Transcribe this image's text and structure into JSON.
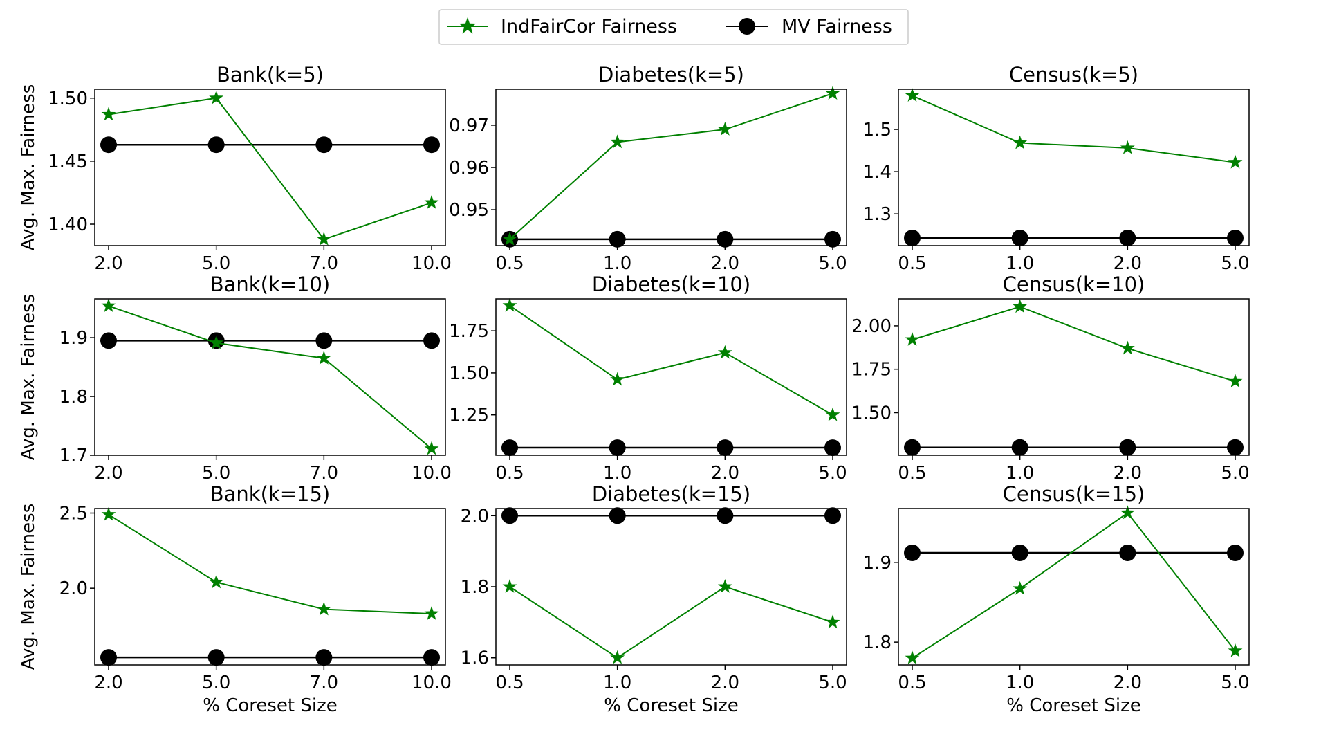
{
  "legend": {
    "location": "top-center",
    "entries": [
      {
        "label": "IndFairCor Fairness",
        "color": "#008000",
        "marker": "star"
      },
      {
        "label": "MV Fairness",
        "color": "#000000",
        "marker": "circle"
      }
    ]
  },
  "colors": {
    "indfaircor": "#008000",
    "mv": "#000000"
  },
  "chart_data": [
    {
      "type": "line",
      "title": "Bank(k=5)",
      "xlabel": "",
      "ylabel": "Avg. Max. Fairness",
      "categories": [
        "2.0",
        "5.0",
        "7.0",
        "10.0"
      ],
      "yticks": [
        "1.40",
        "1.45",
        "1.50"
      ],
      "ylim": [
        1.383,
        1.507
      ],
      "series": [
        {
          "name": "IndFairCor Fairness",
          "values": [
            1.487,
            1.5,
            1.388,
            1.417
          ]
        },
        {
          "name": "MV Fairness",
          "values": [
            1.463,
            1.463,
            1.463,
            1.463
          ]
        }
      ]
    },
    {
      "type": "line",
      "title": "Diabetes(k=5)",
      "xlabel": "",
      "ylabel": "",
      "categories": [
        "0.5",
        "1.0",
        "2.0",
        "5.0"
      ],
      "yticks": [
        "0.95",
        "0.96",
        "0.97"
      ],
      "ylim": [
        0.9415,
        0.9785
      ],
      "series": [
        {
          "name": "IndFairCor Fairness",
          "values": [
            0.943,
            0.966,
            0.969,
            0.9775
          ]
        },
        {
          "name": "MV Fairness",
          "values": [
            0.943,
            0.943,
            0.943,
            0.943
          ]
        }
      ]
    },
    {
      "type": "line",
      "title": "Census(k=5)",
      "xlabel": "",
      "ylabel": "",
      "categories": [
        "0.5",
        "1.0",
        "2.0",
        "5.0"
      ],
      "yticks": [
        "1.3",
        "1.4",
        "1.5"
      ],
      "ylim": [
        1.225,
        1.595
      ],
      "series": [
        {
          "name": "IndFairCor Fairness",
          "values": [
            1.58,
            1.468,
            1.456,
            1.422
          ]
        },
        {
          "name": "MV Fairness",
          "values": [
            1.243,
            1.243,
            1.243,
            1.243
          ]
        }
      ]
    },
    {
      "type": "line",
      "title": "Bank(k=10)",
      "xlabel": "",
      "ylabel": "Avg. Max. Fairness",
      "categories": [
        "2.0",
        "5.0",
        "7.0",
        "10.0"
      ],
      "yticks": [
        "1.7",
        "1.8",
        "1.9"
      ],
      "ylim": [
        1.7,
        1.966
      ],
      "series": [
        {
          "name": "IndFairCor Fairness",
          "values": [
            1.954,
            1.891,
            1.865,
            1.711
          ]
        },
        {
          "name": "MV Fairness",
          "values": [
            1.895,
            1.895,
            1.895,
            1.895
          ]
        }
      ]
    },
    {
      "type": "line",
      "title": "Diabetes(k=10)",
      "xlabel": "",
      "ylabel": "",
      "categories": [
        "0.5",
        "1.0",
        "2.0",
        "5.0"
      ],
      "yticks": [
        "1.25",
        "1.50",
        "1.75"
      ],
      "ylim": [
        1.01,
        1.94
      ],
      "series": [
        {
          "name": "IndFairCor Fairness",
          "values": [
            1.9,
            1.46,
            1.62,
            1.25
          ]
        },
        {
          "name": "MV Fairness",
          "values": [
            1.055,
            1.055,
            1.055,
            1.055
          ]
        }
      ]
    },
    {
      "type": "line",
      "title": "Census(k=10)",
      "xlabel": "",
      "ylabel": "",
      "categories": [
        "0.5",
        "1.0",
        "2.0",
        "5.0"
      ],
      "yticks": [
        "1.50",
        "1.75",
        "2.00"
      ],
      "ylim": [
        1.255,
        2.155
      ],
      "series": [
        {
          "name": "IndFairCor Fairness",
          "values": [
            1.92,
            2.11,
            1.87,
            1.68
          ]
        },
        {
          "name": "MV Fairness",
          "values": [
            1.3,
            1.3,
            1.3,
            1.3
          ]
        }
      ]
    },
    {
      "type": "line",
      "title": "Bank(k=15)",
      "xlabel": "% Coreset Size",
      "ylabel": "Avg. Max. Fairness",
      "categories": [
        "2.0",
        "5.0",
        "7.0",
        "10.0"
      ],
      "yticks": [
        "2.0",
        "2.5"
      ],
      "ylim": [
        1.49,
        2.53
      ],
      "series": [
        {
          "name": "IndFairCor Fairness",
          "values": [
            2.49,
            2.04,
            1.86,
            1.83
          ]
        },
        {
          "name": "MV Fairness",
          "values": [
            1.54,
            1.54,
            1.54,
            1.54
          ]
        }
      ]
    },
    {
      "type": "line",
      "title": "Diabetes(k=15)",
      "xlabel": "% Coreset Size",
      "ylabel": "",
      "categories": [
        "0.5",
        "1.0",
        "2.0",
        "5.0"
      ],
      "yticks": [
        "1.6",
        "1.8",
        "2.0"
      ],
      "ylim": [
        1.58,
        2.02
      ],
      "series": [
        {
          "name": "IndFairCor Fairness",
          "values": [
            1.8,
            1.6,
            1.8,
            1.7
          ]
        },
        {
          "name": "MV Fairness",
          "values": [
            2.0,
            2.0,
            2.0,
            2.0
          ]
        }
      ]
    },
    {
      "type": "line",
      "title": "Census(k=15)",
      "xlabel": "% Coreset Size",
      "ylabel": "",
      "categories": [
        "0.5",
        "1.0",
        "2.0",
        "5.0"
      ],
      "yticks": [
        "1.8",
        "1.9"
      ],
      "ylim": [
        1.7715,
        1.9675
      ],
      "series": [
        {
          "name": "IndFairCor Fairness",
          "values": [
            1.78,
            1.867,
            1.962,
            1.789
          ]
        },
        {
          "name": "MV Fairness",
          "values": [
            1.912,
            1.912,
            1.912,
            1.912
          ]
        }
      ]
    }
  ]
}
